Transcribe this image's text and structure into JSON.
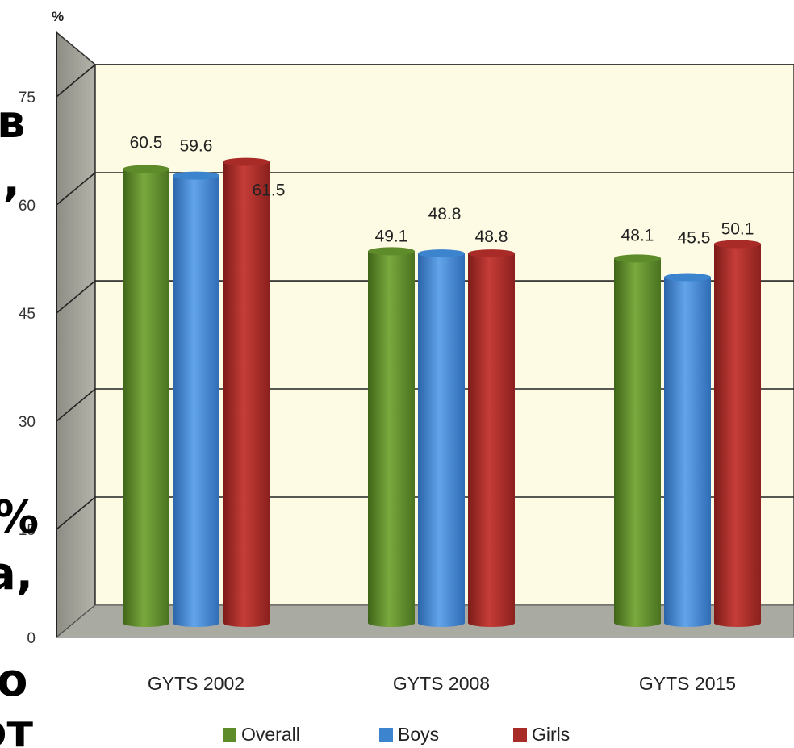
{
  "chart_data": {
    "type": "bar",
    "y_unit": "%",
    "categories": [
      "GYTS 2002",
      "GYTS 2008",
      "GYTS 2015"
    ],
    "series": [
      {
        "name": "Overall",
        "color": "#5f8c2a",
        "values": [
          60.5,
          49.1,
          48.1
        ]
      },
      {
        "name": "Boys",
        "color": "#3d84cf",
        "values": [
          59.6,
          48.8,
          45.5
        ]
      },
      {
        "name": "Girls",
        "color": "#a82b27",
        "values": [
          61.5,
          48.8,
          50.1
        ]
      }
    ],
    "ylim": [
      0,
      75
    ],
    "yticks": [
      "0",
      "15",
      "30",
      "45",
      "60",
      "75"
    ],
    "grid": true,
    "legend_position": "bottom",
    "plot_background": "#fdfbe3"
  },
  "background_fragments": [
    "в",
    "),",
    "%",
    "а,",
    "о",
    "от"
  ]
}
